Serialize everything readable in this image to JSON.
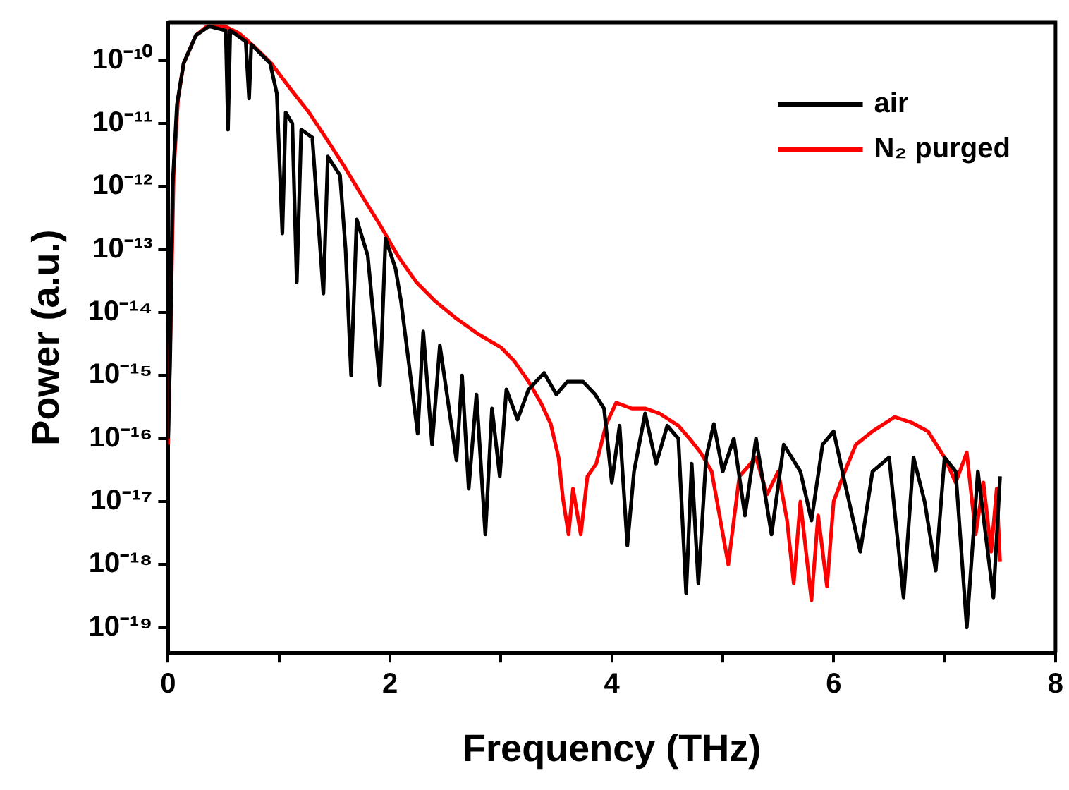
{
  "chart_data": {
    "type": "line",
    "xlabel": "Frequency (THz)",
    "ylabel": "Power (a.u.)",
    "log": "y",
    "grid": false,
    "legend": "top right",
    "marker": "none",
    "line_style": "solid",
    "xlim": [
      0,
      8
    ],
    "xticks": [
      0,
      {
        "value": 1,
        "label": null
      },
      2,
      {
        "value": 3,
        "label": null
      },
      4,
      {
        "value": 5,
        "label": null
      },
      6,
      {
        "value": 7,
        "label": null
      },
      8
    ],
    "ylim": [
      4e-20,
      4e-10
    ],
    "yticks": [
      {
        "value": 1e-10,
        "label": "10⁻¹⁰"
      },
      {
        "value": 1e-11,
        "label": "10⁻¹¹"
      },
      {
        "value": 1e-12,
        "label": "10⁻¹²"
      },
      {
        "value": 1e-13,
        "label": "10⁻¹³"
      },
      {
        "value": 1e-14,
        "label": "10⁻¹⁴"
      },
      {
        "value": 1e-15,
        "label": "10⁻¹⁵"
      },
      {
        "value": 1e-16,
        "label": "10⁻¹⁶"
      },
      {
        "value": 1e-17,
        "label": "10⁻¹⁷"
      },
      {
        "value": 1e-18,
        "label": "10⁻¹⁸"
      },
      {
        "value": 1e-19,
        "label": "10⁻¹⁹"
      }
    ],
    "series": [
      {
        "name": "air",
        "color": "#000000",
        "x": [
          0,
          0.02,
          0.04,
          0.08,
          0.14,
          0.25,
          0.37,
          0.52,
          0.54,
          0.56,
          0.7,
          0.73,
          0.75,
          0.92,
          0.98,
          1.03,
          1.06,
          1.12,
          1.16,
          1.2,
          1.3,
          1.4,
          1.44,
          1.55,
          1.6,
          1.65,
          1.7,
          1.8,
          1.91,
          1.96,
          2.05,
          2.1,
          2.25,
          2.3,
          2.38,
          2.45,
          2.6,
          2.65,
          2.71,
          2.78,
          2.86,
          2.92,
          2.99,
          3.05,
          3.15,
          3.25,
          3.39,
          3.5,
          3.6,
          3.74,
          3.85,
          3.93,
          4.0,
          4.07,
          4.14,
          4.2,
          4.3,
          4.4,
          4.5,
          4.6,
          4.67,
          4.72,
          4.78,
          4.85,
          4.92,
          5.0,
          5.1,
          5.2,
          5.3,
          5.44,
          5.55,
          5.7,
          5.8,
          5.9,
          6.0,
          6.1,
          6.24,
          6.35,
          6.5,
          6.63,
          6.72,
          6.82,
          6.92,
          7.0,
          7.1,
          7.2,
          7.3,
          7.44,
          7.5
        ],
        "values": [
          1e-16,
          2.5e-15,
          1e-12,
          2e-11,
          9e-11,
          2.5e-10,
          3.5e-10,
          3e-10,
          8e-12,
          3e-10,
          2e-10,
          2.5e-11,
          1.8e-10,
          9e-11,
          3e-11,
          1.8e-13,
          1.5e-11,
          1e-11,
          3e-14,
          8e-12,
          6e-12,
          2e-14,
          3e-12,
          1.5e-12,
          1e-13,
          1e-15,
          3e-13,
          8e-14,
          7e-16,
          1.5e-13,
          5e-14,
          1.5e-14,
          1.2e-16,
          5e-15,
          8e-17,
          3e-15,
          4.5e-17,
          1e-15,
          1.6e-17,
          5e-16,
          3e-18,
          3e-16,
          2.5e-17,
          6e-16,
          2e-16,
          6e-16,
          1.1e-15,
          5e-16,
          8e-16,
          8e-16,
          5e-16,
          3e-16,
          2e-17,
          1.6e-16,
          2e-18,
          3e-17,
          2.5e-16,
          4e-17,
          1.6e-16,
          1e-16,
          3.5e-19,
          4e-17,
          5e-19,
          5e-17,
          1.7e-16,
          3e-17,
          1e-16,
          6e-18,
          1e-16,
          3e-18,
          8e-17,
          3e-17,
          5e-18,
          8e-17,
          1.3e-16,
          2e-17,
          1.6e-18,
          3e-17,
          5e-17,
          3e-19,
          5e-17,
          1e-17,
          8e-19,
          5e-17,
          3e-17,
          1e-19,
          3e-17,
          3e-19,
          2.5e-17
        ]
      },
      {
        "name": "N₂ purged",
        "color": "#ff0000",
        "x": [
          0,
          0.03,
          0.05,
          0.09,
          0.14,
          0.25,
          0.35,
          0.51,
          0.64,
          0.77,
          0.93,
          1.1,
          1.27,
          1.42,
          1.58,
          1.75,
          1.92,
          2.07,
          2.24,
          2.41,
          2.6,
          2.8,
          3.0,
          3.12,
          3.25,
          3.36,
          3.45,
          3.52,
          3.56,
          3.61,
          3.65,
          3.72,
          3.78,
          3.86,
          3.95,
          4.04,
          4.18,
          4.3,
          4.43,
          4.6,
          4.7,
          4.8,
          4.9,
          5.05,
          5.15,
          5.3,
          5.4,
          5.5,
          5.58,
          5.64,
          5.7,
          5.8,
          5.86,
          5.94,
          6.0,
          6.1,
          6.2,
          6.35,
          6.55,
          6.7,
          6.85,
          7.0,
          7.1,
          7.2,
          7.28,
          7.35,
          7.42,
          7.47,
          7.5
        ],
        "values": [
          8e-17,
          2.5e-14,
          1.6e-12,
          2.5e-11,
          9e-11,
          2.5e-10,
          3.5e-10,
          3.5e-10,
          2.7e-10,
          1.7e-10,
          9e-11,
          3.6e-11,
          1.5e-11,
          6e-12,
          2.2e-12,
          7e-13,
          2.3e-13,
          8e-14,
          3e-14,
          1.5e-14,
          8e-15,
          4.5e-15,
          2.8e-15,
          1.7e-15,
          8e-16,
          3.7e-16,
          1.7e-16,
          5e-17,
          1.1e-17,
          3e-18,
          1.6e-17,
          3e-18,
          2.5e-17,
          4e-17,
          1.7e-16,
          3.7e-16,
          3e-16,
          3e-16,
          2.5e-16,
          1.6e-16,
          1e-16,
          6e-17,
          3e-17,
          1e-18,
          2.5e-17,
          5e-17,
          1.3e-17,
          3e-17,
          5e-18,
          5e-19,
          1e-17,
          2.7e-19,
          6e-18,
          4.5e-19,
          1e-17,
          3e-17,
          8e-17,
          1.3e-16,
          2.2e-16,
          1.8e-16,
          1.3e-16,
          5e-17,
          2e-17,
          6e-17,
          3e-18,
          2e-17,
          1.6e-18,
          1.6e-17,
          1.1e-18
        ]
      }
    ]
  }
}
